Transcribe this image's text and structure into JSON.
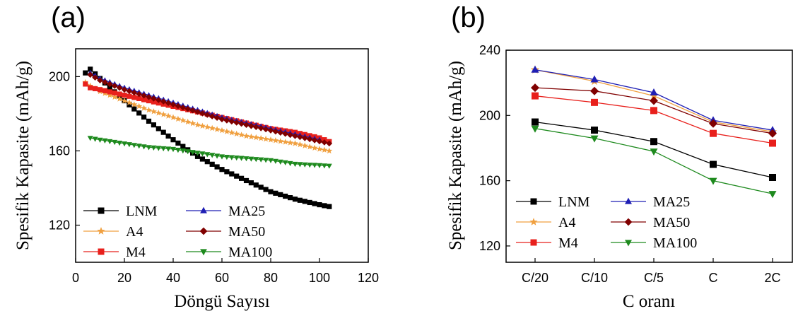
{
  "panels": [
    {
      "label": "(a)",
      "chart_data": {
        "type": "line",
        "xlabel": "Döngü Sayısı",
        "ylabel": "Spesifik Kapasite (mAh/g)",
        "xlim": [
          0,
          120
        ],
        "ylim": [
          100,
          215
        ],
        "xticks": [
          0,
          20,
          40,
          60,
          80,
          100,
          120
        ],
        "yticks": [
          120,
          160,
          200
        ],
        "legend": "bottom-left",
        "legend_order": [
          0,
          3,
          1,
          4,
          2,
          5
        ],
        "series": [
          {
            "name": "LNM",
            "color": "#000000",
            "marker": "square",
            "x": [
              4,
              6,
              10,
              20,
              30,
              40,
              50,
              60,
              70,
              80,
              90,
              100,
              104
            ],
            "y": [
              202,
              204,
              199,
              187,
              176,
              166,
              157,
              150,
              144,
              138,
              134,
              131,
              130
            ]
          },
          {
            "name": "A4",
            "color": "#f0a040",
            "marker": "star",
            "x": [
              4,
              6,
              10,
              20,
              30,
              40,
              50,
              60,
              70,
              80,
              90,
              100,
              104
            ],
            "y": [
              197,
              195,
              192,
              187,
              182,
              178,
              174,
              171,
              168,
              166,
              164,
              161,
              160
            ]
          },
          {
            "name": "M4",
            "color": "#e8201c",
            "marker": "square",
            "x": [
              4,
              6,
              10,
              20,
              30,
              40,
              50,
              60,
              70,
              80,
              90,
              100,
              104
            ],
            "y": [
              196,
              194,
              193,
              190,
              187,
              184,
              181,
              178,
              175,
              172,
              170,
              167,
              165
            ]
          },
          {
            "name": "MA25",
            "color": "#1f1fb4",
            "marker": "triangle-up",
            "x": [
              6,
              10,
              20,
              30,
              40,
              50,
              60,
              70,
              80,
              90,
              100
            ],
            "y": [
              202,
              199,
              194,
              190,
              186,
              182,
              178,
              175,
              172,
              169,
              166
            ]
          },
          {
            "name": "MA50",
            "color": "#800000",
            "marker": "diamond",
            "x": [
              6,
              10,
              20,
              30,
              40,
              50,
              60,
              70,
              80,
              90,
              104
            ],
            "y": [
              201,
              198,
              193,
              189,
              185,
              181,
              177,
              174,
              171,
              168,
              164
            ]
          },
          {
            "name": "MA100",
            "color": "#1e8a1e",
            "marker": "triangle-down",
            "x": [
              6,
              10,
              20,
              30,
              40,
              50,
              60,
              70,
              80,
              90,
              104
            ],
            "y": [
              167,
              166,
              164,
              162,
              161,
              159,
              157,
              156,
              155,
              153,
              152
            ]
          }
        ]
      }
    },
    {
      "label": "(b)",
      "chart_data": {
        "type": "line",
        "xlabel": "C oranı",
        "ylabel": "Spesifik Kapasite (mAh/g)",
        "categories": [
          "C/20",
          "C/10",
          "C/5",
          "C",
          "2C"
        ],
        "ylim": [
          110,
          240
        ],
        "yticks": [
          120,
          160,
          200,
          240
        ],
        "legend": "bottom-left",
        "legend_order": [
          0,
          3,
          1,
          4,
          2,
          5
        ],
        "series": [
          {
            "name": "LNM",
            "color": "#000000",
            "marker": "square",
            "values": [
              196,
              191,
              184,
              170,
              162
            ]
          },
          {
            "name": "A4",
            "color": "#f0a040",
            "marker": "star",
            "values": [
              228,
              221,
              212,
              196,
              190
            ]
          },
          {
            "name": "M4",
            "color": "#e8201c",
            "marker": "square",
            "values": [
              212,
              208,
              203,
              189,
              183
            ]
          },
          {
            "name": "MA25",
            "color": "#1f1fb4",
            "marker": "triangle-up",
            "values": [
              228,
              222,
              214,
              197,
              191
            ]
          },
          {
            "name": "MA50",
            "color": "#800000",
            "marker": "diamond",
            "values": [
              217,
              215,
              209,
              195,
              189
            ]
          },
          {
            "name": "MA100",
            "color": "#1e8a1e",
            "marker": "triangle-down",
            "values": [
              192,
              186,
              178,
              160,
              152
            ]
          }
        ]
      }
    }
  ]
}
